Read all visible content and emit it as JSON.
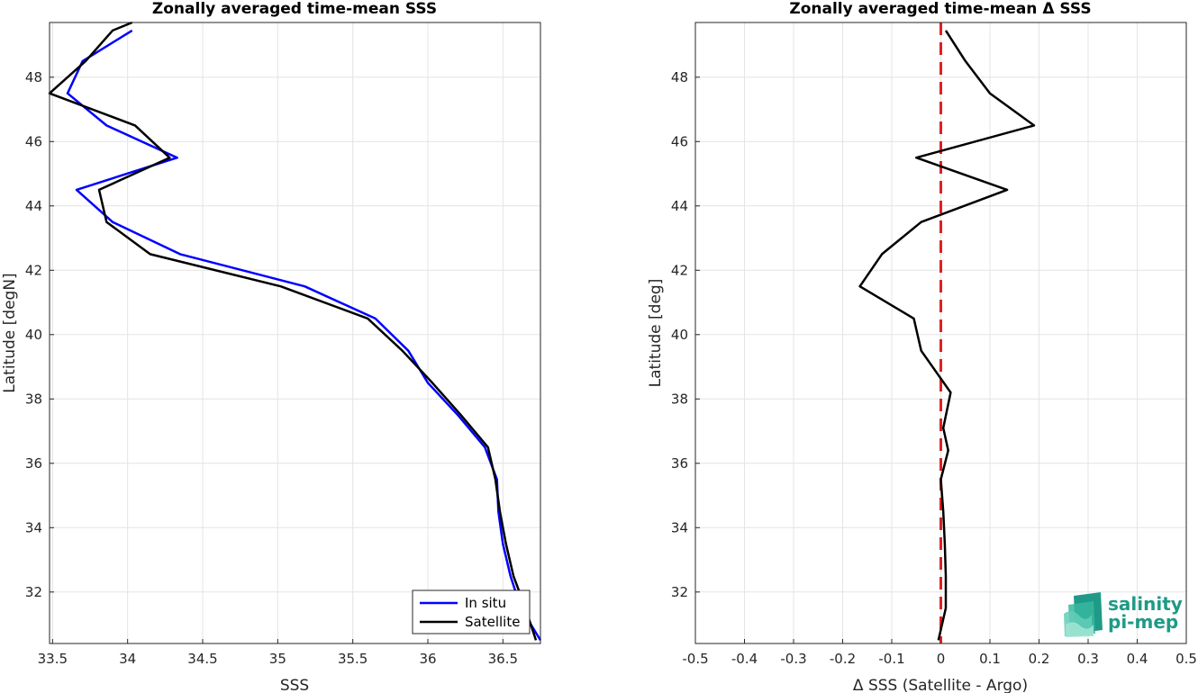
{
  "chart_data": [
    {
      "type": "line",
      "title": "Zonally averaged time-mean SSS",
      "xlabel": "SSS",
      "ylabel": "Latitude [degN]",
      "xlim": [
        33.48,
        36.75
      ],
      "ylim": [
        30.4,
        49.7
      ],
      "xticks": [
        "33.5",
        "34",
        "34.5",
        "35",
        "35.5",
        "36",
        "36.5"
      ],
      "yticks": [
        "32",
        "34",
        "36",
        "38",
        "40",
        "42",
        "44",
        "46",
        "48"
      ],
      "grid": true,
      "legend_position": "bottom-right",
      "series": [
        {
          "name": "In situ",
          "color": "#0000ff",
          "points": [
            {
              "x": 36.75,
              "y": 30.5
            },
            {
              "x": 36.62,
              "y": 31.5
            },
            {
              "x": 36.55,
              "y": 32.5
            },
            {
              "x": 36.5,
              "y": 33.5
            },
            {
              "x": 36.47,
              "y": 34.5
            },
            {
              "x": 36.46,
              "y": 35.5
            },
            {
              "x": 36.38,
              "y": 36.5
            },
            {
              "x": 36.2,
              "y": 37.5
            },
            {
              "x": 36.0,
              "y": 38.5
            },
            {
              "x": 35.87,
              "y": 39.5
            },
            {
              "x": 35.65,
              "y": 40.5
            },
            {
              "x": 35.18,
              "y": 41.5
            },
            {
              "x": 34.35,
              "y": 42.5
            },
            {
              "x": 33.9,
              "y": 43.5
            },
            {
              "x": 33.66,
              "y": 44.5
            },
            {
              "x": 34.33,
              "y": 45.5
            },
            {
              "x": 33.86,
              "y": 46.5
            },
            {
              "x": 33.6,
              "y": 47.5
            },
            {
              "x": 33.7,
              "y": 48.5
            },
            {
              "x": 34.03,
              "y": 49.45
            }
          ]
        },
        {
          "name": "Satellite",
          "color": "#000000",
          "points": [
            {
              "x": 36.72,
              "y": 30.5
            },
            {
              "x": 36.65,
              "y": 31.5
            },
            {
              "x": 36.57,
              "y": 32.5
            },
            {
              "x": 36.52,
              "y": 33.5
            },
            {
              "x": 36.48,
              "y": 34.5
            },
            {
              "x": 36.45,
              "y": 35.5
            },
            {
              "x": 36.4,
              "y": 36.5
            },
            {
              "x": 36.22,
              "y": 37.5
            },
            {
              "x": 36.03,
              "y": 38.5
            },
            {
              "x": 35.83,
              "y": 39.5
            },
            {
              "x": 35.6,
              "y": 40.5
            },
            {
              "x": 35.02,
              "y": 41.5
            },
            {
              "x": 34.15,
              "y": 42.5
            },
            {
              "x": 33.86,
              "y": 43.5
            },
            {
              "x": 33.81,
              "y": 44.5
            },
            {
              "x": 34.28,
              "y": 45.5
            },
            {
              "x": 34.05,
              "y": 46.5
            },
            {
              "x": 33.48,
              "y": 47.5
            },
            {
              "x": 33.72,
              "y": 48.5
            },
            {
              "x": 33.9,
              "y": 49.45
            },
            {
              "x": 34.03,
              "y": 49.7
            }
          ]
        }
      ]
    },
    {
      "type": "line",
      "title": "Zonally averaged time-mean Δ SSS",
      "xlabel": "Δ SSS (Satellite - Argo)",
      "ylabel": "Latitude [deg]",
      "xlim": [
        -0.5,
        0.5
      ],
      "ylim": [
        30.4,
        49.7
      ],
      "xticks": [
        "-0.5",
        "-0.4",
        "-0.3",
        "-0.2",
        "-0.1",
        "0",
        "0.1",
        "0.2",
        "0.3",
        "0.4",
        "0.5"
      ],
      "yticks": [
        "32",
        "34",
        "36",
        "38",
        "40",
        "42",
        "44",
        "46",
        "48"
      ],
      "grid": true,
      "reference_line": {
        "x": 0,
        "color": "#e02020",
        "style": "dashed"
      },
      "series": [
        {
          "color": "#000000",
          "points": [
            {
              "x": -0.005,
              "y": 30.5
            },
            {
              "x": 0.01,
              "y": 31.5
            },
            {
              "x": 0.01,
              "y": 32.5
            },
            {
              "x": 0.008,
              "y": 33.5
            },
            {
              "x": 0.005,
              "y": 34.5
            },
            {
              "x": 0.0,
              "y": 35.5
            },
            {
              "x": 0.015,
              "y": 36.4
            },
            {
              "x": 0.005,
              "y": 37.1
            },
            {
              "x": 0.02,
              "y": 38.2
            },
            {
              "x": -0.04,
              "y": 39.5
            },
            {
              "x": -0.055,
              "y": 40.5
            },
            {
              "x": -0.165,
              "y": 41.5
            },
            {
              "x": -0.12,
              "y": 42.5
            },
            {
              "x": -0.04,
              "y": 43.5
            },
            {
              "x": 0.135,
              "y": 44.5
            },
            {
              "x": -0.05,
              "y": 45.5
            },
            {
              "x": 0.19,
              "y": 46.5
            },
            {
              "x": 0.1,
              "y": 47.5
            },
            {
              "x": 0.05,
              "y": 48.5
            },
            {
              "x": 0.01,
              "y": 49.45
            }
          ]
        }
      ]
    }
  ],
  "logo": {
    "line1": "salinity",
    "line2": "pi-mep",
    "colors": [
      "#1f9a86",
      "#37b7a0",
      "#63cdb8",
      "#9fe3d3"
    ]
  }
}
